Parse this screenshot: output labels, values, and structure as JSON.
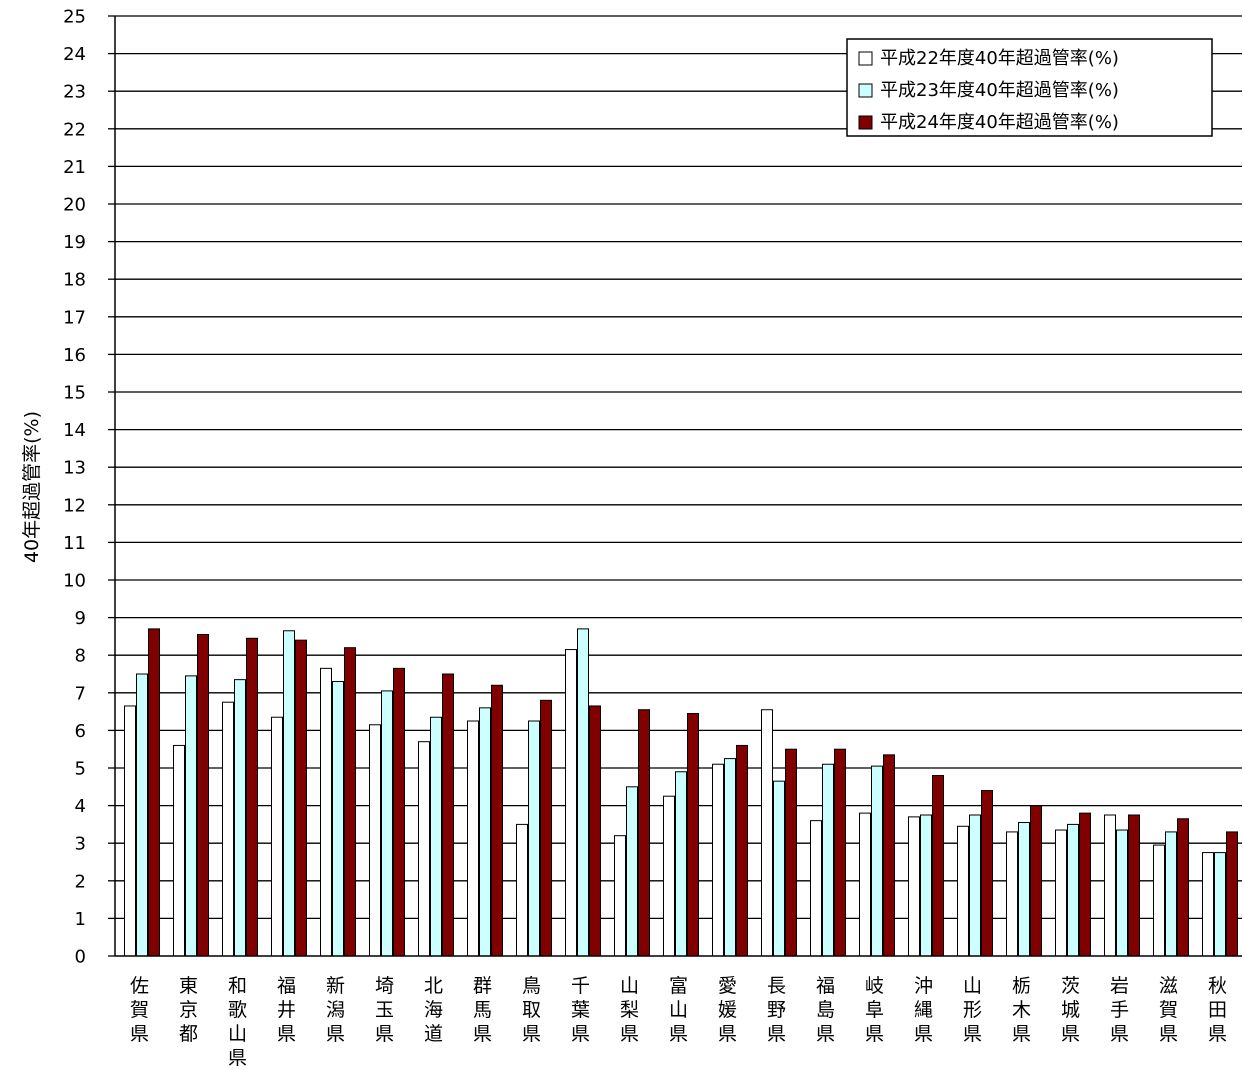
{
  "chart_data": {
    "type": "bar",
    "title": "",
    "xlabel": "",
    "ylabel": "40年超過管率(%)",
    "ylim": [
      0,
      25
    ],
    "yticks": [
      0,
      1,
      2,
      3,
      4,
      5,
      6,
      7,
      8,
      9,
      10,
      11,
      12,
      13,
      14,
      15,
      16,
      17,
      18,
      19,
      20,
      21,
      22,
      23,
      24,
      25
    ],
    "grid": true,
    "legend_position": "top-right",
    "categories": [
      "佐賀県",
      "東京都",
      "和歌山県",
      "福井県",
      "新潟県",
      "埼玉県",
      "北海道",
      "群馬県",
      "鳥取県",
      "千葉県",
      "山梨県",
      "富山県",
      "愛媛県",
      "長野県",
      "福島県",
      "岐阜県",
      "沖縄県",
      "山形県",
      "栃木県",
      "茨城県",
      "岩手県",
      "滋賀県",
      "秋田県"
    ],
    "series": [
      {
        "name": "平成22年度40年超過管率(%)",
        "color": "#ffffff",
        "values": [
          6.65,
          5.6,
          6.75,
          6.35,
          7.65,
          6.15,
          5.7,
          6.25,
          3.5,
          8.15,
          3.2,
          4.25,
          5.1,
          6.55,
          3.6,
          3.8,
          3.7,
          3.45,
          3.3,
          3.35,
          3.75,
          2.95,
          2.75
        ]
      },
      {
        "name": "平成23年度40年超過管率(%)",
        "color": "#ccffff",
        "values": [
          7.5,
          7.45,
          7.35,
          8.65,
          7.3,
          7.05,
          6.35,
          6.6,
          6.25,
          8.7,
          4.5,
          4.9,
          5.25,
          4.65,
          5.1,
          5.05,
          3.75,
          3.75,
          3.55,
          3.5,
          3.35,
          3.3,
          2.75
        ]
      },
      {
        "name": "平成24年度40年超過管率(%)",
        "color": "#800000",
        "values": [
          8.7,
          8.55,
          8.45,
          8.4,
          8.2,
          7.65,
          7.5,
          7.2,
          6.8,
          6.65,
          6.55,
          6.45,
          5.6,
          5.5,
          5.5,
          5.35,
          4.8,
          4.4,
          4.0,
          3.8,
          3.75,
          3.65,
          3.3
        ]
      }
    ]
  }
}
